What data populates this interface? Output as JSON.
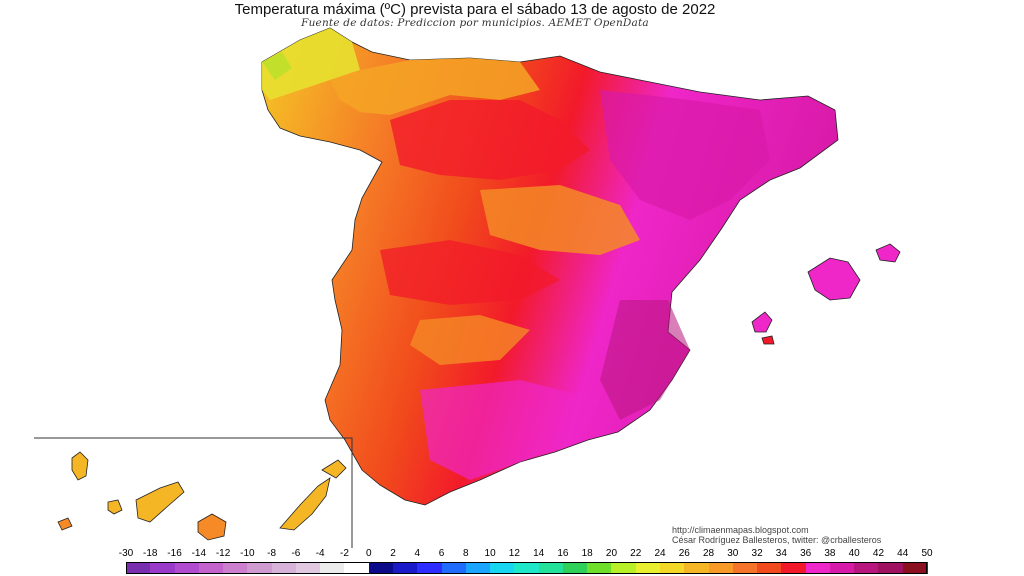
{
  "header": {
    "title": "Temperatura máxima (ºC) prevista para el sábado 13 de agosto de 2022",
    "subtitle": "Fuente de datos: Prediccion por municipios. AEMET OpenData"
  },
  "credits": {
    "url": "http://climaenmapas.blogspot.com",
    "author": "César Rodríguez Ballesteros, twitter: @crballesteros"
  },
  "map_regions": {
    "peninsula": "Península Ibérica",
    "balearics": "Islas Baleares",
    "canaries": "Islas Canarias"
  },
  "legend": {
    "ticks": [
      "-30",
      "-18",
      "-16",
      "-14",
      "-12",
      "-10",
      "-8",
      "-6",
      "-4",
      "-2",
      "0",
      "2",
      "4",
      "6",
      "8",
      "10",
      "12",
      "14",
      "16",
      "18",
      "20",
      "22",
      "24",
      "26",
      "28",
      "30",
      "32",
      "34",
      "36",
      "38",
      "40",
      "42",
      "44",
      "50"
    ],
    "colors": [
      "#7a2fb0",
      "#9a3ac8",
      "#b04cd0",
      "#c463cc",
      "#cc7fcc",
      "#cf9ad0",
      "#d8b2d8",
      "#e2c9e2",
      "#ececec",
      "#ffffff",
      "#0b0b8a",
      "#1a1ac8",
      "#2d2dff",
      "#1f6cff",
      "#1aa6ff",
      "#19d6f0",
      "#1ee8c8",
      "#23e09a",
      "#2fd05a",
      "#6fe02a",
      "#b8f028",
      "#e8f030",
      "#f4d828",
      "#f5b626",
      "#f79a26",
      "#f5742a",
      "#f14a1c",
      "#f21a2a",
      "#ef26c8",
      "#d81aa8",
      "#b8167e",
      "#a01060",
      "#8a1020"
    ]
  }
}
